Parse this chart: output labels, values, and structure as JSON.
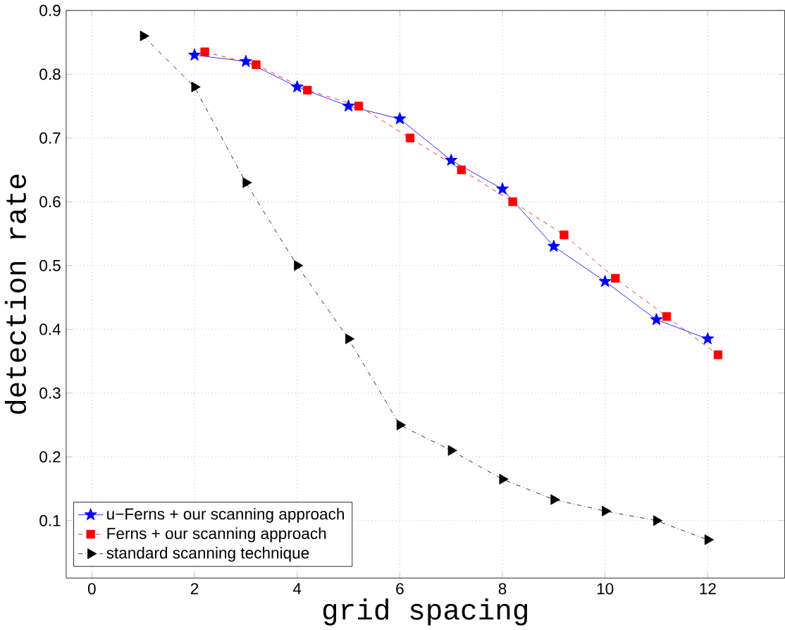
{
  "chart_data": {
    "type": "line",
    "xlabel": "grid spacing",
    "ylabel": "detection rate",
    "xlim": [
      -0.5,
      13.5
    ],
    "ylim": [
      0.01,
      0.9
    ],
    "xticks": [
      0,
      2,
      4,
      6,
      8,
      10,
      12
    ],
    "yticks": [
      0.1,
      0.2,
      0.3,
      0.4,
      0.5,
      0.6,
      0.7,
      0.8,
      0.9
    ],
    "grid": true,
    "legend": "bottom left",
    "series": [
      {
        "name": "u−Ferns + our scanning approach",
        "color": "#0000ff",
        "marker": "star",
        "line_style": "solid",
        "x": [
          2,
          3,
          4,
          5,
          6,
          7,
          8,
          9,
          10,
          11,
          12
        ],
        "values": [
          0.83,
          0.82,
          0.78,
          0.75,
          0.73,
          0.665,
          0.62,
          0.53,
          0.475,
          0.415,
          0.385
        ]
      },
      {
        "name": "Ferns + our scanning approach",
        "color": "#ff0000",
        "marker": "square",
        "line_style": "dashed",
        "x": [
          2.2,
          3.2,
          4.2,
          5.2,
          6.2,
          7.2,
          8.2,
          9.2,
          10.2,
          11.2,
          12.2
        ],
        "values": [
          0.835,
          0.815,
          0.775,
          0.75,
          0.7,
          0.65,
          0.6,
          0.548,
          0.48,
          0.42,
          0.36
        ]
      },
      {
        "name": "standard scanning technique",
        "color": "#000000",
        "marker": "triangle",
        "line_style": "dashdot",
        "x": [
          1,
          2,
          3,
          4,
          5,
          6,
          7,
          8,
          9,
          10,
          11,
          12
        ],
        "values": [
          0.86,
          0.78,
          0.63,
          0.5,
          0.385,
          0.25,
          0.21,
          0.165,
          0.133,
          0.115,
          0.1,
          0.07
        ]
      }
    ]
  }
}
